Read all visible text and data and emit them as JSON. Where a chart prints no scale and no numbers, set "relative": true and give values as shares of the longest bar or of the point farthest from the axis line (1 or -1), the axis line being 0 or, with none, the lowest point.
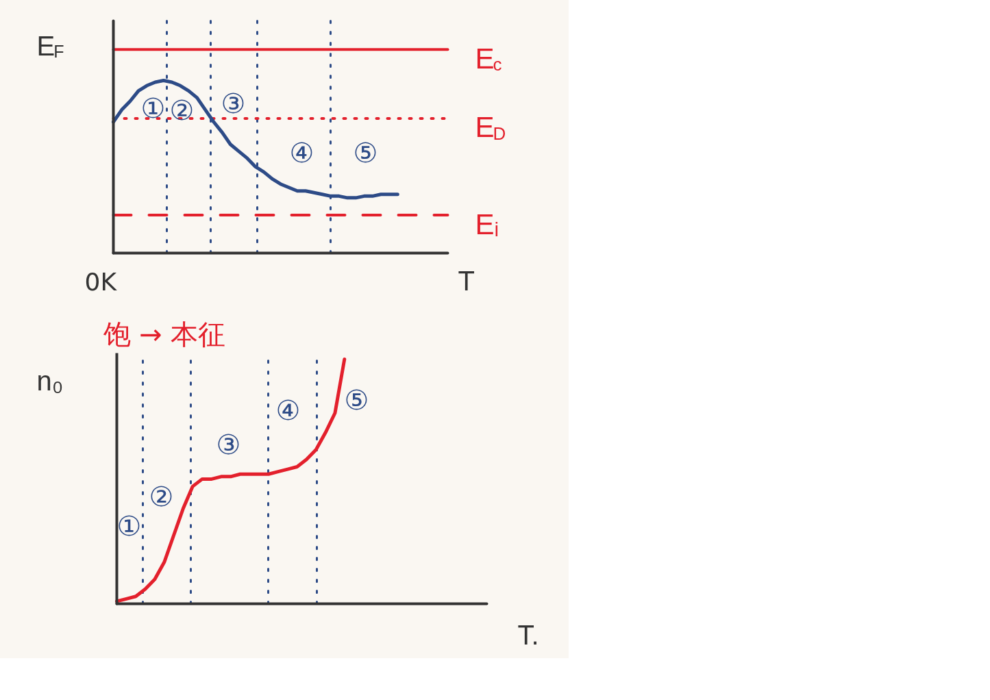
{
  "chart_data": [
    {
      "type": "line",
      "ylabel": "E$_{F}$",
      "xlabel": "T",
      "relative": true,
      "grid": "x",
      "categories": [
        null,
        null,
        null,
        null,
        null,
        null,
        null,
        null,
        null,
        null,
        null,
        null,
        null,
        null,
        null,
        null,
        null,
        null,
        null,
        null,
        null,
        null,
        null,
        null,
        null,
        null,
        null,
        null,
        null,
        null,
        null,
        null,
        null,
        null,
        null,
        null,
        null,
        null,
        null,
        null,
        null
      ],
      "series": [
        {
          "color": "#2d4b87",
          "values": [
            0.76,
            0.83,
            0.88,
            0.94,
            0.97,
            0.99,
            1.0,
            0.99,
            0.97,
            0.94,
            0.9,
            0.83,
            0.76,
            0.7,
            0.63,
            0.59,
            0.55,
            0.5,
            0.47,
            0.43,
            0.4,
            0.38,
            0.36,
            0.36,
            0.35,
            0.34,
            0.33,
            0.33,
            0.32,
            0.32,
            0.33,
            0.33,
            0.34,
            0.34,
            0.34,
            null,
            null,
            null,
            null,
            null,
            null
          ]
        }
      ],
      "ref_lines": [
        {
          "axis": "y",
          "value": 1.18,
          "label": "E$_{c}$",
          "color": "#e3202c",
          "line_style": "solid"
        },
        {
          "axis": "y",
          "value": 0.78,
          "label": "E$_{D}$",
          "color": "#e3202c",
          "line_style": "dotted"
        },
        {
          "axis": "y",
          "value": 0.22,
          "label": "Eᵢ",
          "color": "#e3202c",
          "line_style": "dashed"
        }
      ],
      "annotations": [
        "①",
        "②",
        "③",
        "④",
        "⑤",
        "0K",
        "饱 → 本征"
      ]
    },
    {
      "type": "line",
      "ylabel": "n₀",
      "xlabel": "T.",
      "relative": true,
      "grid": "x",
      "categories": [
        null,
        null,
        null,
        null,
        null,
        null,
        null,
        null,
        null,
        null,
        null,
        null,
        null,
        null,
        null,
        null,
        null,
        null,
        null,
        null,
        null,
        null,
        null,
        null,
        null,
        null,
        null,
        null,
        null,
        null,
        null,
        null,
        null,
        null,
        null,
        null,
        null,
        null,
        null,
        null
      ],
      "series": [
        {
          "color": "#e3202c",
          "values": [
            0.01,
            0.02,
            0.03,
            0.06,
            0.1,
            0.17,
            0.28,
            0.39,
            0.48,
            0.51,
            0.51,
            0.52,
            0.52,
            0.53,
            0.53,
            0.53,
            0.53,
            0.54,
            0.55,
            0.56,
            0.59,
            0.63,
            0.7,
            0.78,
            1.0,
            null,
            null,
            null,
            null,
            null,
            null,
            null,
            null,
            null,
            null,
            null,
            null,
            null,
            null,
            null
          ]
        }
      ],
      "annotations": [
        "①",
        "②",
        "③",
        "④",
        "⑤"
      ]
    }
  ]
}
